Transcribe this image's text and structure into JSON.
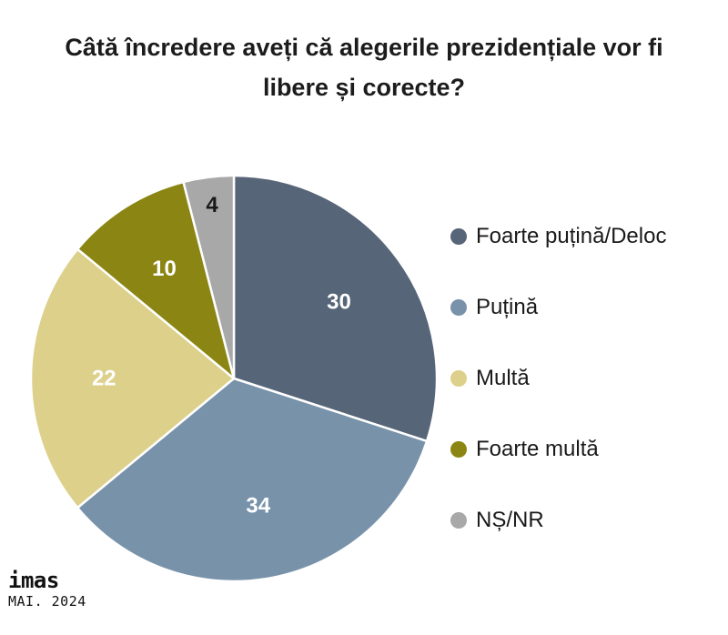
{
  "chart_data": {
    "type": "pie",
    "title_lines": [
      "Câtă încredere aveți că alegerile prezidențiale vor fi",
      "libere și corecte?"
    ],
    "slices": [
      {
        "label": "Foarte puțină/Deloc",
        "value": 30,
        "color": "#566577",
        "label_color": "#ffffff"
      },
      {
        "label": "Puțină",
        "value": 34,
        "color": "#7892aa",
        "label_color": "#ffffff"
      },
      {
        "label": "Multă",
        "value": 22,
        "color": "#dcd08a",
        "label_color": "#ffffff"
      },
      {
        "label": "Foarte multă",
        "value": 10,
        "color": "#8b8614",
        "label_color": "#ffffff"
      },
      {
        "label": "NȘ/NR",
        "value": 4,
        "color": "#a8a8a8",
        "label_color": "#1a1a1a"
      }
    ],
    "start_angle": "top",
    "direction": "clockwise",
    "legend_position": "right"
  },
  "branding": {
    "logo": "imas",
    "date": "MAI. 2024"
  }
}
